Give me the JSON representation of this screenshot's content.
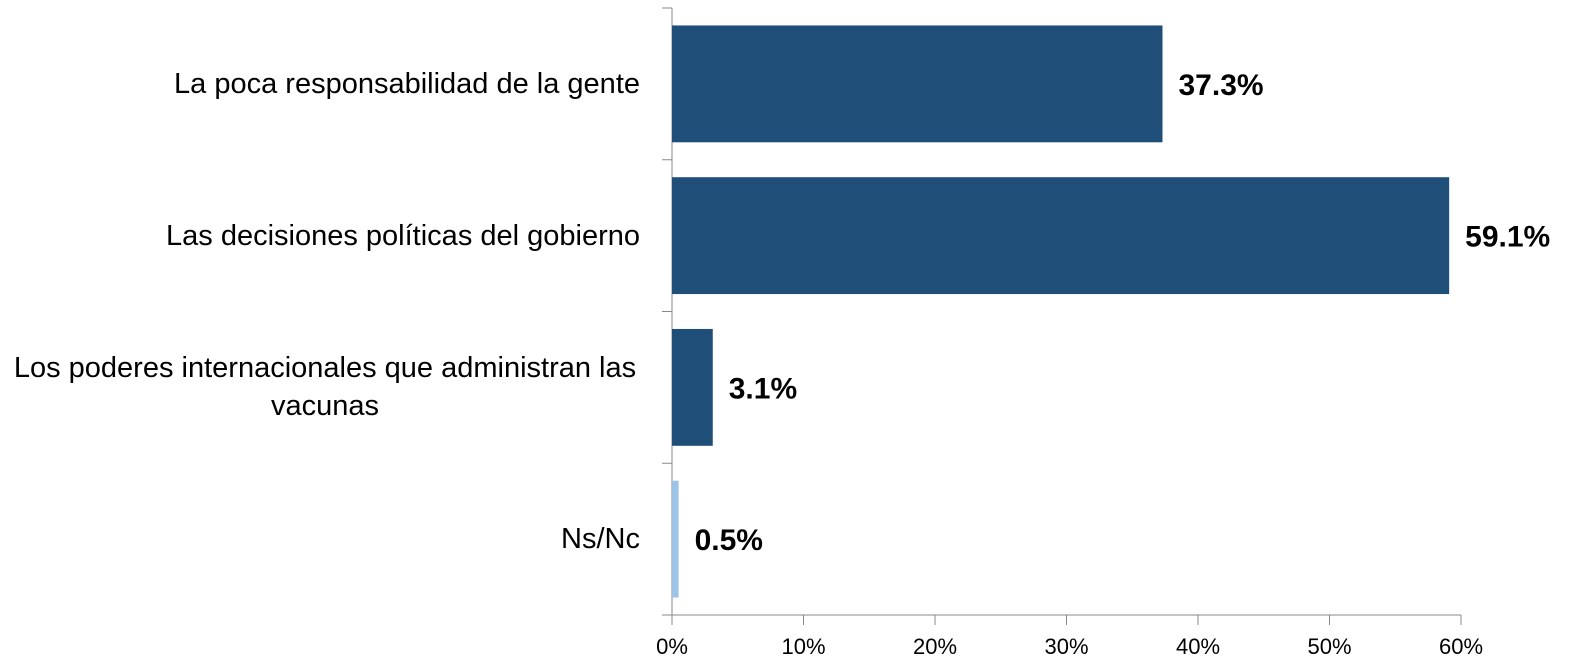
{
  "chart_data": {
    "type": "bar",
    "orientation": "horizontal",
    "categories": [
      "La poca responsabilidad de la gente",
      "Las decisiones políticas del gobierno",
      "Los poderes internacionales que administran las vacunas",
      "Ns/Nc"
    ],
    "values": [
      37.3,
      59.1,
      3.1,
      0.5
    ],
    "value_labels": [
      "37.3%",
      "59.1%",
      "3.1%",
      "0.5%"
    ],
    "colors": [
      "#1f4e79",
      "#1f4e79",
      "#1f4e79",
      "#9dc3e6"
    ],
    "xlim": [
      0,
      60
    ],
    "xticks": [
      {
        "value": 0,
        "label": "0%"
      },
      {
        "value": 10,
        "label": "10%"
      },
      {
        "value": 20,
        "label": "20%"
      },
      {
        "value": 30,
        "label": "30%"
      },
      {
        "value": 40,
        "label": "40%"
      },
      {
        "value": 50,
        "label": "50%"
      },
      {
        "value": 60,
        "label": "60%"
      }
    ],
    "grid": false
  }
}
